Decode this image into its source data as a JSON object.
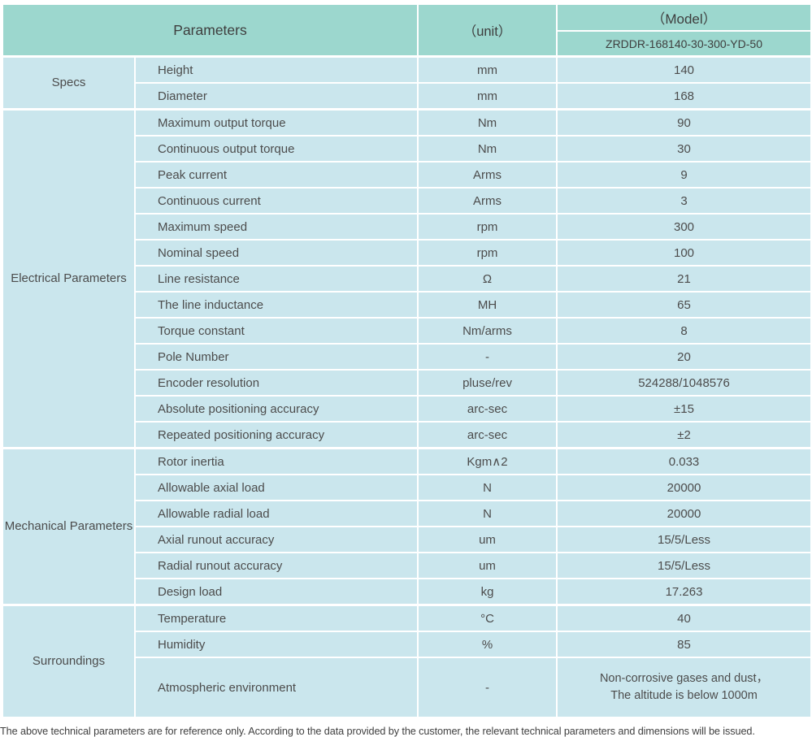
{
  "header": {
    "parameters_label": "Parameters",
    "unit_label": "（unit）",
    "model_label": "（Model）",
    "model_number": "ZRDDR-168140-30-300-YD-50"
  },
  "groups": [
    {
      "label": "Specs",
      "rows": [
        {
          "name": "Height",
          "unit": "mm",
          "value": "140"
        },
        {
          "name": "Diameter",
          "unit": "mm",
          "value": "168"
        }
      ]
    },
    {
      "label": "Electrical Parameters",
      "rows": [
        {
          "name": "Maximum output torque",
          "unit": "Nm",
          "value": "90"
        },
        {
          "name": "Continuous output torque",
          "unit": "Nm",
          "value": "30"
        },
        {
          "name": "Peak current",
          "unit": "Arms",
          "value": "9"
        },
        {
          "name": "Continuous current",
          "unit": "Arms",
          "value": "3"
        },
        {
          "name": "Maximum speed",
          "unit": "rpm",
          "value": "300"
        },
        {
          "name": "Nominal speed",
          "unit": "rpm",
          "value": "100"
        },
        {
          "name": "Line resistance",
          "unit": "Ω",
          "value": "21"
        },
        {
          "name": "The line inductance",
          "unit": "MH",
          "value": "65"
        },
        {
          "name": "Torque constant",
          "unit": "Nm/arms",
          "value": "8"
        },
        {
          "name": "Pole Number",
          "unit": "-",
          "value": "20"
        },
        {
          "name": "Encoder resolution",
          "unit": "pluse/rev",
          "value": "524288/1048576"
        },
        {
          "name": "Absolute positioning accuracy",
          "unit": "arc-sec",
          "value": "±15"
        },
        {
          "name": "Repeated positioning accuracy",
          "unit": "arc-sec",
          "value": "±2"
        }
      ]
    },
    {
      "label": "Mechanical Parameters",
      "rows": [
        {
          "name": "Rotor inertia",
          "unit": "Kgm∧2",
          "value": "0.033"
        },
        {
          "name": "Allowable axial load",
          "unit": "N",
          "value": "20000"
        },
        {
          "name": "Allowable radial load",
          "unit": "N",
          "value": "20000"
        },
        {
          "name": "Axial runout accuracy",
          "unit": "um",
          "value": "15/5/Less"
        },
        {
          "name": "Radial runout accuracy",
          "unit": "um",
          "value": "15/5/Less"
        },
        {
          "name": "Design load",
          "unit": "kg",
          "value": "17.263"
        }
      ]
    },
    {
      "label": "Surroundings",
      "rows": [
        {
          "name": "Temperature",
          "unit": "°C",
          "value": "40"
        },
        {
          "name": "Humidity",
          "unit": "%",
          "value": "85"
        },
        {
          "name": "Atmospheric environment",
          "unit": "-",
          "value": "Non-corrosive gases and dust，\nThe altitude is below 1000m"
        }
      ]
    }
  ],
  "footer": {
    "note": "The above technical parameters are for reference only. According to the data provided by the customer, the relevant technical parameters and dimensions will be issued."
  },
  "colors": {
    "header_bg": "#9cd7ce",
    "cell_bg": "#cae6ed",
    "text": "#4c4c4c"
  }
}
